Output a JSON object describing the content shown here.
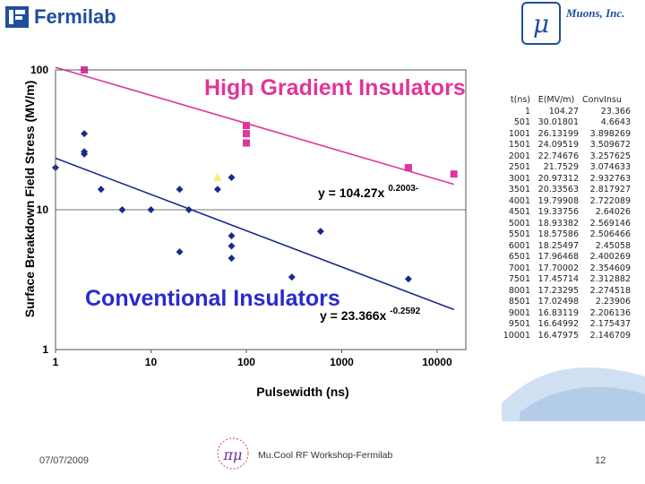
{
  "header": {
    "brand": "Fermilab",
    "partner_symbol": "μ",
    "partner_name": "Muons, Inc."
  },
  "colors": {
    "conventional": "#1a2a8c",
    "high_gradient": "#e0359a",
    "title_high": "#e0359a",
    "title_conv": "#2a2ad0",
    "highlight_point": "#f5f07a",
    "brand": "#1f4e9c"
  },
  "chart_data": {
    "type": "scatter",
    "axes": "log-log",
    "xlabel": "Pulsewidth (ns)",
    "ylabel": "Surface Breakdown Field Stress (MV/m)",
    "xlim": [
      1,
      20000
    ],
    "ylim": [
      1,
      100
    ],
    "xticks": [
      1,
      10,
      100,
      1000,
      10000
    ],
    "xtick_labels": [
      "1",
      "10",
      "100",
      "1000",
      "10000"
    ],
    "yticks": [
      1,
      10,
      100
    ],
    "ytick_labels": [
      "1",
      "10",
      "100"
    ],
    "annotations": {
      "high_title": "High Gradient Insulators",
      "conv_title": "Conventional Insulators",
      "high_eq": "y = 104.27x",
      "high_exp": "0.2003-",
      "conv_eq": "y = 23.366x",
      "conv_exp": "-0.2592"
    },
    "series": [
      {
        "name": "Conventional Insulators",
        "marker": "diamond",
        "x": [
          1,
          2,
          2,
          2,
          3,
          5,
          10,
          20,
          20,
          25,
          50,
          70,
          70,
          70,
          70,
          300,
          600,
          5000
        ],
        "y": [
          20,
          35,
          26,
          25,
          14,
          10,
          10,
          14,
          5,
          10,
          14,
          17,
          6.5,
          5.5,
          4.5,
          3.3,
          7,
          3.2
        ]
      },
      {
        "name": "High Gradient Insulators",
        "marker": "square",
        "x": [
          2,
          100,
          100,
          100,
          5000,
          15000
        ],
        "y": [
          100,
          40,
          35,
          30,
          20,
          18
        ]
      },
      {
        "name": "Highlighted point",
        "marker": "triangle",
        "x": [
          50
        ],
        "y": [
          17
        ]
      }
    ],
    "fits": [
      {
        "name": "high-gradient-fit",
        "a": 104.27,
        "b": -0.2003,
        "x_range": [
          1,
          15000
        ]
      },
      {
        "name": "conventional-fit",
        "a": 23.366,
        "b": -0.2592,
        "x_range": [
          1,
          15000
        ]
      }
    ]
  },
  "table": {
    "headers": [
      "t(ns)",
      "E(MV/m)",
      "ConvInsu"
    ],
    "rows": [
      [
        "1",
        "104.27",
        "23.366"
      ],
      [
        "501",
        "30.01801",
        "4.6643"
      ],
      [
        "1001",
        "26.13199",
        "3.898269"
      ],
      [
        "1501",
        "24.09519",
        "3.509672"
      ],
      [
        "2001",
        "22.74676",
        "3.257625"
      ],
      [
        "2501",
        "21.7529",
        "3.074633"
      ],
      [
        "3001",
        "20.97312",
        "2.932763"
      ],
      [
        "3501",
        "20.33563",
        "2.817927"
      ],
      [
        "4001",
        "19.79908",
        "2.722089"
      ],
      [
        "4501",
        "19.33756",
        "2.64026"
      ],
      [
        "5001",
        "18.93382",
        "2.569146"
      ],
      [
        "5501",
        "18.57586",
        "2.506466"
      ],
      [
        "6001",
        "18.25497",
        "2.45058"
      ],
      [
        "6501",
        "17.96468",
        "2.400269"
      ],
      [
        "7001",
        "17.70002",
        "2.354609"
      ],
      [
        "7501",
        "17.45714",
        "2.312882"
      ],
      [
        "8001",
        "17.23295",
        "2.274518"
      ],
      [
        "8501",
        "17.02498",
        "2.23906"
      ],
      [
        "9001",
        "16.83119",
        "2.206136"
      ],
      [
        "9501",
        "16.64992",
        "2.175437"
      ],
      [
        "10001",
        "16.47975",
        "2.146709"
      ]
    ]
  },
  "footer": {
    "date": "07/07/2009",
    "title": "Mu.Cool RF Workshop-Fermilab",
    "page": "12",
    "logo_symbol": "πμ"
  }
}
